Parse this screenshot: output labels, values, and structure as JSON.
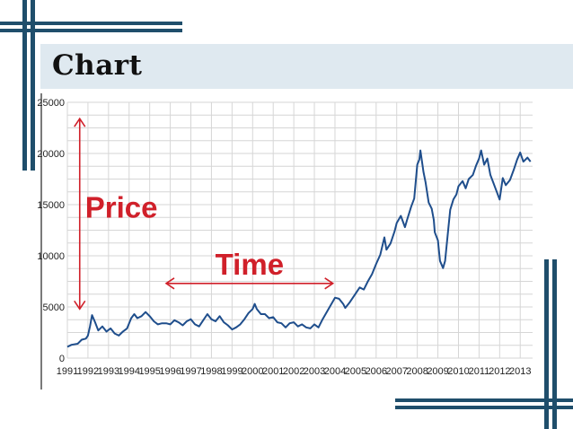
{
  "slide": {
    "title": "Chart"
  },
  "chart_data": {
    "type": "line",
    "title": "",
    "xlabel": "",
    "ylabel": "",
    "x_ticks": [
      "1991",
      "1992",
      "1993",
      "1994",
      "1995",
      "1996",
      "1997",
      "1998",
      "1999",
      "2000",
      "2001",
      "2002",
      "2003",
      "2004",
      "2005",
      "2006",
      "2007",
      "2008",
      "2009",
      "2010",
      "2011",
      "2012",
      "2013"
    ],
    "y_ticks": [
      "0",
      "5000",
      "10000",
      "15000",
      "20000",
      "25000"
    ],
    "ylim": [
      0,
      25000
    ],
    "xlim": [
      1991,
      2013.6
    ],
    "grid": true,
    "series": [
      {
        "color": "#1f4e8c",
        "points": [
          [
            1991.0,
            1100
          ],
          [
            1991.2,
            1300
          ],
          [
            1991.5,
            1400
          ],
          [
            1991.7,
            1800
          ],
          [
            1991.9,
            1900
          ],
          [
            1992.0,
            2200
          ],
          [
            1992.1,
            3100
          ],
          [
            1992.2,
            4200
          ],
          [
            1992.35,
            3500
          ],
          [
            1992.5,
            2700
          ],
          [
            1992.7,
            3100
          ],
          [
            1992.9,
            2600
          ],
          [
            1993.1,
            2900
          ],
          [
            1993.3,
            2400
          ],
          [
            1993.5,
            2200
          ],
          [
            1993.7,
            2600
          ],
          [
            1993.9,
            2900
          ],
          [
            1994.1,
            3900
          ],
          [
            1994.25,
            4300
          ],
          [
            1994.4,
            3900
          ],
          [
            1994.6,
            4100
          ],
          [
            1994.8,
            4500
          ],
          [
            1995.0,
            4100
          ],
          [
            1995.2,
            3600
          ],
          [
            1995.4,
            3300
          ],
          [
            1995.6,
            3400
          ],
          [
            1995.8,
            3400
          ],
          [
            1996.0,
            3300
          ],
          [
            1996.2,
            3700
          ],
          [
            1996.4,
            3500
          ],
          [
            1996.6,
            3200
          ],
          [
            1996.8,
            3600
          ],
          [
            1997.0,
            3800
          ],
          [
            1997.2,
            3300
          ],
          [
            1997.4,
            3100
          ],
          [
            1997.6,
            3700
          ],
          [
            1997.8,
            4300
          ],
          [
            1998.0,
            3800
          ],
          [
            1998.2,
            3600
          ],
          [
            1998.4,
            4100
          ],
          [
            1998.6,
            3500
          ],
          [
            1998.8,
            3200
          ],
          [
            1999.0,
            2800
          ],
          [
            1999.2,
            3000
          ],
          [
            1999.4,
            3300
          ],
          [
            1999.6,
            3800
          ],
          [
            1999.8,
            4400
          ],
          [
            2000.0,
            4800
          ],
          [
            2000.1,
            5300
          ],
          [
            2000.2,
            4800
          ],
          [
            2000.4,
            4300
          ],
          [
            2000.6,
            4300
          ],
          [
            2000.8,
            3900
          ],
          [
            2001.0,
            4000
          ],
          [
            2001.2,
            3500
          ],
          [
            2001.4,
            3400
          ],
          [
            2001.6,
            3000
          ],
          [
            2001.8,
            3400
          ],
          [
            2002.0,
            3500
          ],
          [
            2002.2,
            3100
          ],
          [
            2002.4,
            3300
          ],
          [
            2002.6,
            3000
          ],
          [
            2002.8,
            2900
          ],
          [
            2003.0,
            3300
          ],
          [
            2003.2,
            3000
          ],
          [
            2003.4,
            3800
          ],
          [
            2003.6,
            4500
          ],
          [
            2003.8,
            5200
          ],
          [
            2004.0,
            5900
          ],
          [
            2004.2,
            5800
          ],
          [
            2004.4,
            5300
          ],
          [
            2004.5,
            4900
          ],
          [
            2004.7,
            5400
          ],
          [
            2005.0,
            6300
          ],
          [
            2005.2,
            6900
          ],
          [
            2005.4,
            6700
          ],
          [
            2005.6,
            7500
          ],
          [
            2005.8,
            8200
          ],
          [
            2006.0,
            9200
          ],
          [
            2006.2,
            10100
          ],
          [
            2006.4,
            11800
          ],
          [
            2006.5,
            10600
          ],
          [
            2006.7,
            11200
          ],
          [
            2006.9,
            12400
          ],
          [
            2007.0,
            13200
          ],
          [
            2007.2,
            13900
          ],
          [
            2007.4,
            12800
          ],
          [
            2007.5,
            13500
          ],
          [
            2007.7,
            14800
          ],
          [
            2007.85,
            15600
          ],
          [
            2008.0,
            18900
          ],
          [
            2008.1,
            19400
          ],
          [
            2008.15,
            20300
          ],
          [
            2008.3,
            18200
          ],
          [
            2008.4,
            17200
          ],
          [
            2008.55,
            15200
          ],
          [
            2008.7,
            14600
          ],
          [
            2008.8,
            13500
          ],
          [
            2008.85,
            12300
          ],
          [
            2009.0,
            11500
          ],
          [
            2009.1,
            9500
          ],
          [
            2009.25,
            8800
          ],
          [
            2009.35,
            9500
          ],
          [
            2009.5,
            12500
          ],
          [
            2009.6,
            14500
          ],
          [
            2009.75,
            15500
          ],
          [
            2009.9,
            16000
          ],
          [
            2010.0,
            16800
          ],
          [
            2010.2,
            17300
          ],
          [
            2010.35,
            16600
          ],
          [
            2010.5,
            17500
          ],
          [
            2010.7,
            17900
          ],
          [
            2010.85,
            18800
          ],
          [
            2011.0,
            19500
          ],
          [
            2011.1,
            20300
          ],
          [
            2011.25,
            18900
          ],
          [
            2011.4,
            19500
          ],
          [
            2011.55,
            17900
          ],
          [
            2011.7,
            17100
          ],
          [
            2011.85,
            16300
          ],
          [
            2012.0,
            15500
          ],
          [
            2012.15,
            17600
          ],
          [
            2012.3,
            16900
          ],
          [
            2012.5,
            17400
          ],
          [
            2012.7,
            18500
          ],
          [
            2012.85,
            19400
          ],
          [
            2013.0,
            20100
          ],
          [
            2013.15,
            19200
          ],
          [
            2013.35,
            19600
          ],
          [
            2013.5,
            19200
          ]
        ]
      }
    ],
    "annotations": [
      {
        "text": "Price",
        "arrow": "vertical-double",
        "color": "#d0202a",
        "y_range": [
          4800,
          23400
        ],
        "x_data": 1991.6
      },
      {
        "text": "Time",
        "arrow": "horizontal-double",
        "color": "#d0202a",
        "x_range": [
          1995.8,
          2003.9
        ],
        "y_data": 7300
      }
    ]
  }
}
